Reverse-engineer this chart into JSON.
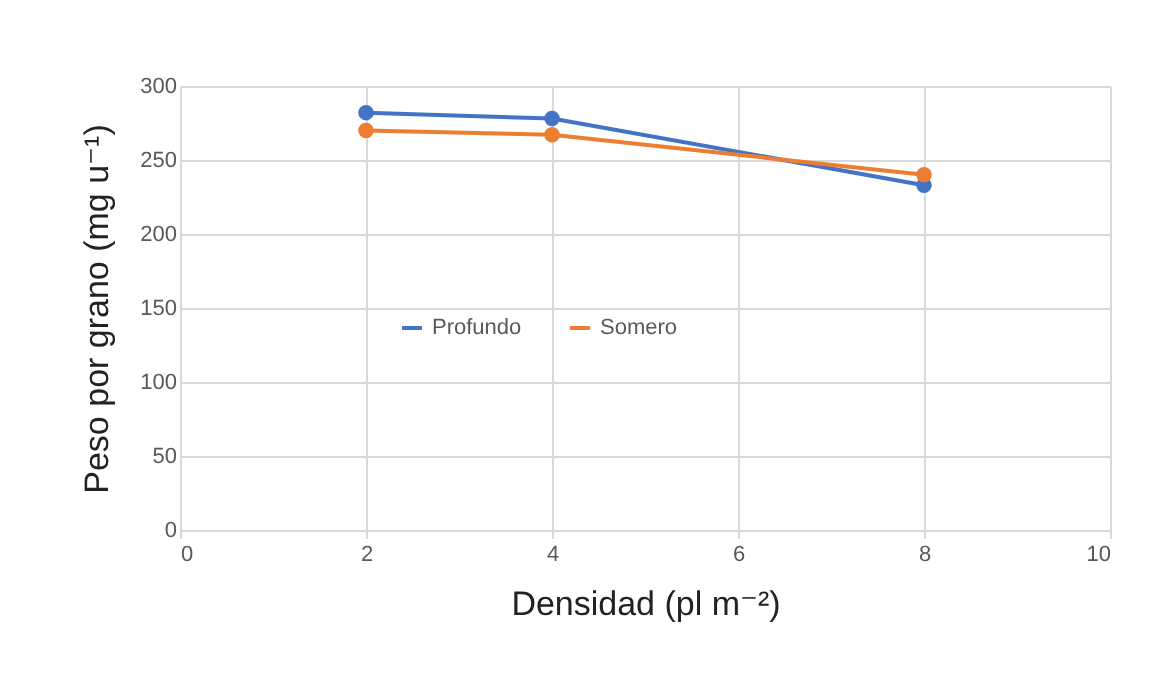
{
  "chart_data": {
    "type": "line",
    "xlabel": "Densidad (pl m⁻²)",
    "ylabel": "Peso por grano (mg u⁻¹)",
    "x": [
      2,
      4,
      8
    ],
    "series": [
      {
        "name": "Profundo",
        "color": "#4472c4",
        "values": [
          282,
          278,
          233
        ]
      },
      {
        "name": "Somero",
        "color": "#ed7d31",
        "values": [
          270,
          267,
          240
        ]
      }
    ],
    "xlim": [
      0,
      10
    ],
    "xticks": [
      0,
      2,
      4,
      6,
      8,
      10
    ],
    "ylim": [
      0,
      300
    ],
    "yticks": [
      0,
      50,
      100,
      150,
      200,
      250,
      300
    ],
    "grid": true,
    "legend": "left",
    "marker": "circle",
    "line_style": "solid"
  }
}
